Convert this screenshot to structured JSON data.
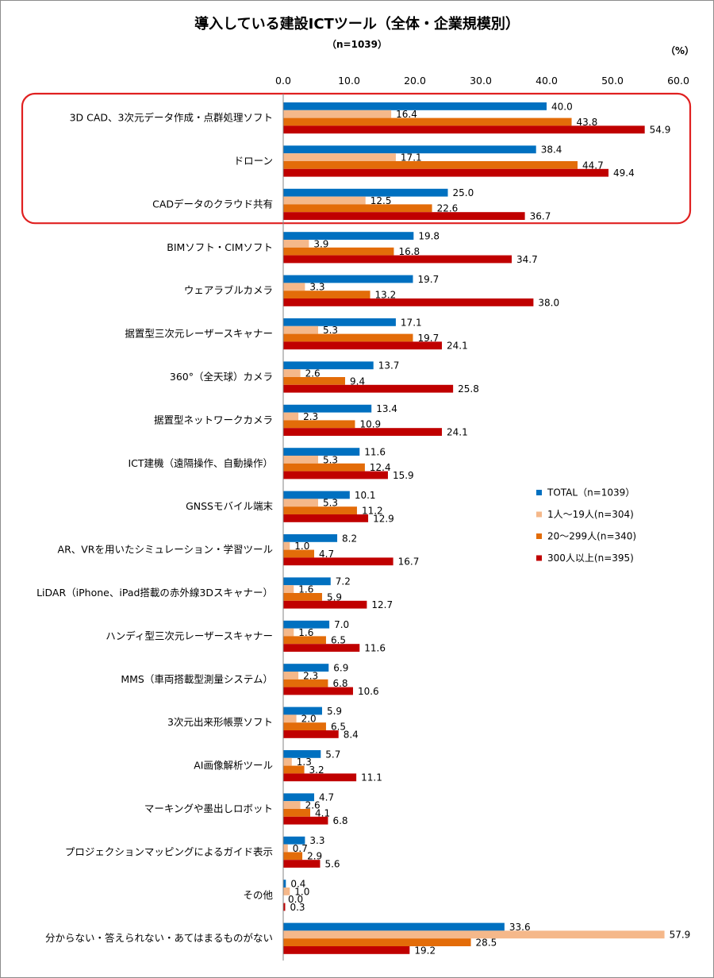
{
  "chart_data": {
    "type": "bar",
    "orientation": "horizontal",
    "title": "導入している建設ICTツール（全体・企業規模別）",
    "subtitle": "（n=1039）",
    "unit": "（%）",
    "xlim": [
      0,
      60
    ],
    "ticks": [
      "0.0",
      "10.0",
      "20.0",
      "30.0",
      "40.0",
      "50.0",
      "60.0"
    ],
    "tick_values": [
      0,
      10,
      20,
      30,
      40,
      50,
      60
    ],
    "grid": false,
    "legend_position": "right",
    "highlight": {
      "categories_from": 0,
      "categories_to": 2,
      "color": "#e02020"
    },
    "categories": [
      "3D CAD、3次元データ作成・点群処理ソフト",
      "ドローン",
      "CADデータのクラウド共有",
      "BIMソフト・CIMソフト",
      "ウェアラブルカメラ",
      "据置型三次元レーザースキャナー",
      "360°（全天球）カメラ",
      "据置型ネットワークカメラ",
      "ICT建機（遠隔操作、自動操作）",
      "GNSSモバイル端末",
      "AR、VRを用いたシミュレーション・学習ツール",
      "LiDAR（iPhone、iPad搭載の赤外線3Dスキャナー）",
      "ハンディ型三次元レーザースキャナー",
      "MMS（車両搭載型測量システム）",
      "3次元出来形帳票ソフト",
      "AI画像解析ツール",
      "マーキングや墨出しロボット",
      "プロジェクションマッピングによるガイド表示",
      "その他",
      "分からない・答えられない・あてはまるものがない"
    ],
    "series": [
      {
        "name": "TOTAL（n=1039）",
        "color": "#0070c0",
        "values": [
          40.0,
          38.4,
          25.0,
          19.8,
          19.7,
          17.1,
          13.7,
          13.4,
          11.6,
          10.1,
          8.2,
          7.2,
          7.0,
          6.9,
          5.9,
          5.7,
          4.7,
          3.3,
          0.4,
          33.6
        ],
        "labels": [
          "40.0",
          "38.4",
          "25.0",
          "19.8",
          "19.7",
          "17.1",
          "13.7",
          "13.4",
          "11.6",
          "10.1",
          "8.2",
          "7.2",
          "7.0",
          "6.9",
          "5.9",
          "5.7",
          "4.7",
          "3.3",
          "0.4",
          "33.6"
        ]
      },
      {
        "name": "1人〜19人(n=304)",
        "color": "#f5b88a",
        "values": [
          16.4,
          17.1,
          12.5,
          3.9,
          3.3,
          5.3,
          2.6,
          2.3,
          5.3,
          5.3,
          1.0,
          1.6,
          1.6,
          2.3,
          2.0,
          1.3,
          2.6,
          0.7,
          1.0,
          57.9
        ],
        "labels": [
          "16.4",
          "17.1",
          "12.5",
          "3.9",
          "3.3",
          "5.3",
          "2.6",
          "2.3",
          "5.3",
          "5.3",
          "1.0",
          "1.6",
          "1.6",
          "2.3",
          "2.0",
          "1.3",
          "2.6",
          "0.7",
          "1.0",
          "57.9"
        ]
      },
      {
        "name": "20〜299人(n=340)",
        "color": "#e36c09",
        "values": [
          43.8,
          44.7,
          22.6,
          16.8,
          13.2,
          19.7,
          9.4,
          10.9,
          12.4,
          11.2,
          4.7,
          5.9,
          6.5,
          6.8,
          6.5,
          3.2,
          4.1,
          2.9,
          0.0,
          28.5
        ],
        "labels": [
          "43.8",
          "44.7",
          "22.6",
          "16.8",
          "13.2",
          "19.7",
          "9.4",
          "10.9",
          "12.4",
          "11.2",
          "4.7",
          "5.9",
          "6.5",
          "6.8",
          "6.5",
          "3.2",
          "4.1",
          "2.9",
          "0.0",
          "28.5"
        ]
      },
      {
        "name": "300人以上(n=395)",
        "color": "#c00000",
        "values": [
          54.9,
          49.4,
          36.7,
          34.7,
          38.0,
          24.1,
          25.8,
          24.1,
          15.9,
          12.9,
          16.7,
          12.7,
          11.6,
          10.6,
          8.4,
          11.1,
          6.8,
          5.6,
          0.3,
          19.2
        ],
        "labels": [
          "54.9",
          "49.4",
          "36.7",
          "34.7",
          "38.0",
          "24.1",
          "25.8",
          "24.1",
          "15.9",
          "12.9",
          "16.7",
          "12.7",
          "11.6",
          "10.6",
          "8.4",
          "11.1",
          "6.8",
          "5.6",
          "0.3",
          "19.2"
        ]
      }
    ]
  }
}
